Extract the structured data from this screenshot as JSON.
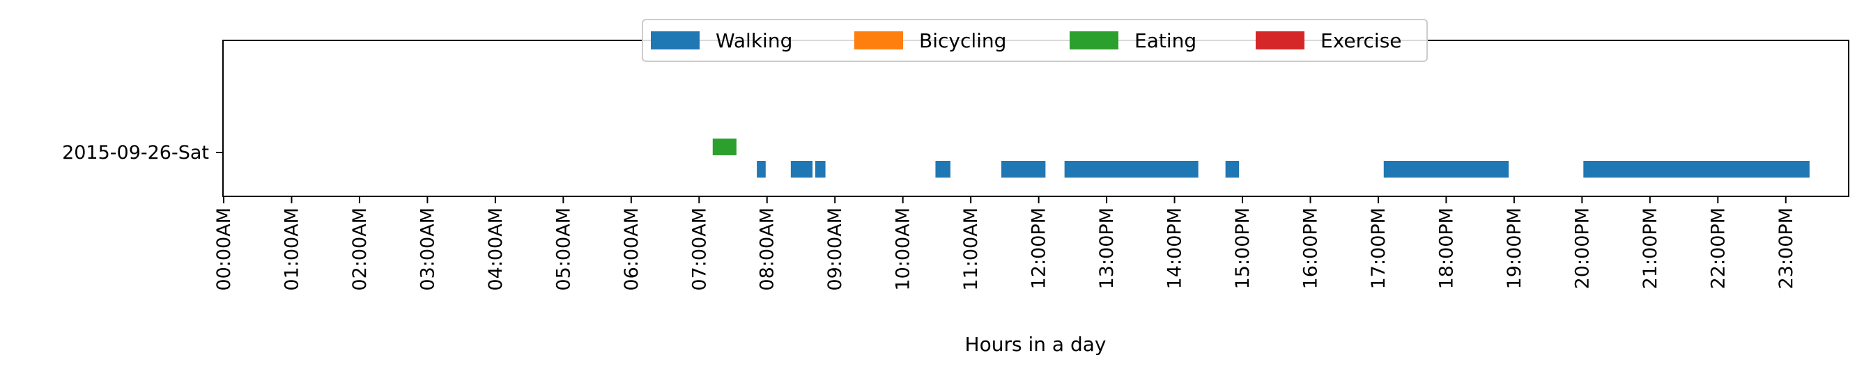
{
  "chart_data": {
    "type": "timeline",
    "title": "",
    "xlabel": "Hours in a day",
    "ylabel": "",
    "x_unit": "hour",
    "xlim": [
      0,
      24
    ],
    "rows": [
      "2015-09-26-Sat"
    ],
    "x_ticks": [
      {
        "value": 0,
        "label": "00:00AM"
      },
      {
        "value": 1,
        "label": "01:00AM"
      },
      {
        "value": 2,
        "label": "02:00AM"
      },
      {
        "value": 3,
        "label": "03:00AM"
      },
      {
        "value": 4,
        "label": "04:00AM"
      },
      {
        "value": 5,
        "label": "05:00AM"
      },
      {
        "value": 6,
        "label": "06:00AM"
      },
      {
        "value": 7,
        "label": "07:00AM"
      },
      {
        "value": 8,
        "label": "08:00AM"
      },
      {
        "value": 9,
        "label": "09:00AM"
      },
      {
        "value": 10,
        "label": "10:00AM"
      },
      {
        "value": 11,
        "label": "11:00AM"
      },
      {
        "value": 12,
        "label": "12:00PM"
      },
      {
        "value": 13,
        "label": "13:00PM"
      },
      {
        "value": 14,
        "label": "14:00PM"
      },
      {
        "value": 15,
        "label": "15:00PM"
      },
      {
        "value": 16,
        "label": "16:00PM"
      },
      {
        "value": 17,
        "label": "17:00PM"
      },
      {
        "value": 18,
        "label": "18:00PM"
      },
      {
        "value": 19,
        "label": "19:00PM"
      },
      {
        "value": 20,
        "label": "20:00PM"
      },
      {
        "value": 21,
        "label": "21:00PM"
      },
      {
        "value": 22,
        "label": "22:00PM"
      },
      {
        "value": 23,
        "label": "23:00PM"
      }
    ],
    "legend": {
      "placement": "top-center",
      "entries": [
        {
          "name": "Walking",
          "color": "#1f77b4"
        },
        {
          "name": "Bicycling",
          "color": "#ff7f0e"
        },
        {
          "name": "Eating",
          "color": "#2ca02c"
        },
        {
          "name": "Exercise",
          "color": "#d62728"
        }
      ]
    },
    "series": [
      {
        "name": "Walking",
        "color": "#1f77b4",
        "row": "2015-09-26-Sat",
        "intervals": [
          [
            7.85,
            7.98
          ],
          [
            8.35,
            8.67
          ],
          [
            8.71,
            8.86
          ],
          [
            10.48,
            10.7
          ],
          [
            11.45,
            12.1
          ],
          [
            12.38,
            14.35
          ],
          [
            14.75,
            14.95
          ],
          [
            17.08,
            18.92
          ],
          [
            20.02,
            23.35
          ]
        ]
      },
      {
        "name": "Bicycling",
        "color": "#ff7f0e",
        "row": "2015-09-26-Sat",
        "intervals": []
      },
      {
        "name": "Eating",
        "color": "#2ca02c",
        "row": "2015-09-26-Sat",
        "intervals": [
          [
            7.2,
            7.55
          ]
        ]
      },
      {
        "name": "Exercise",
        "color": "#d62728",
        "row": "2015-09-26-Sat",
        "intervals": []
      }
    ],
    "grid": false
  }
}
